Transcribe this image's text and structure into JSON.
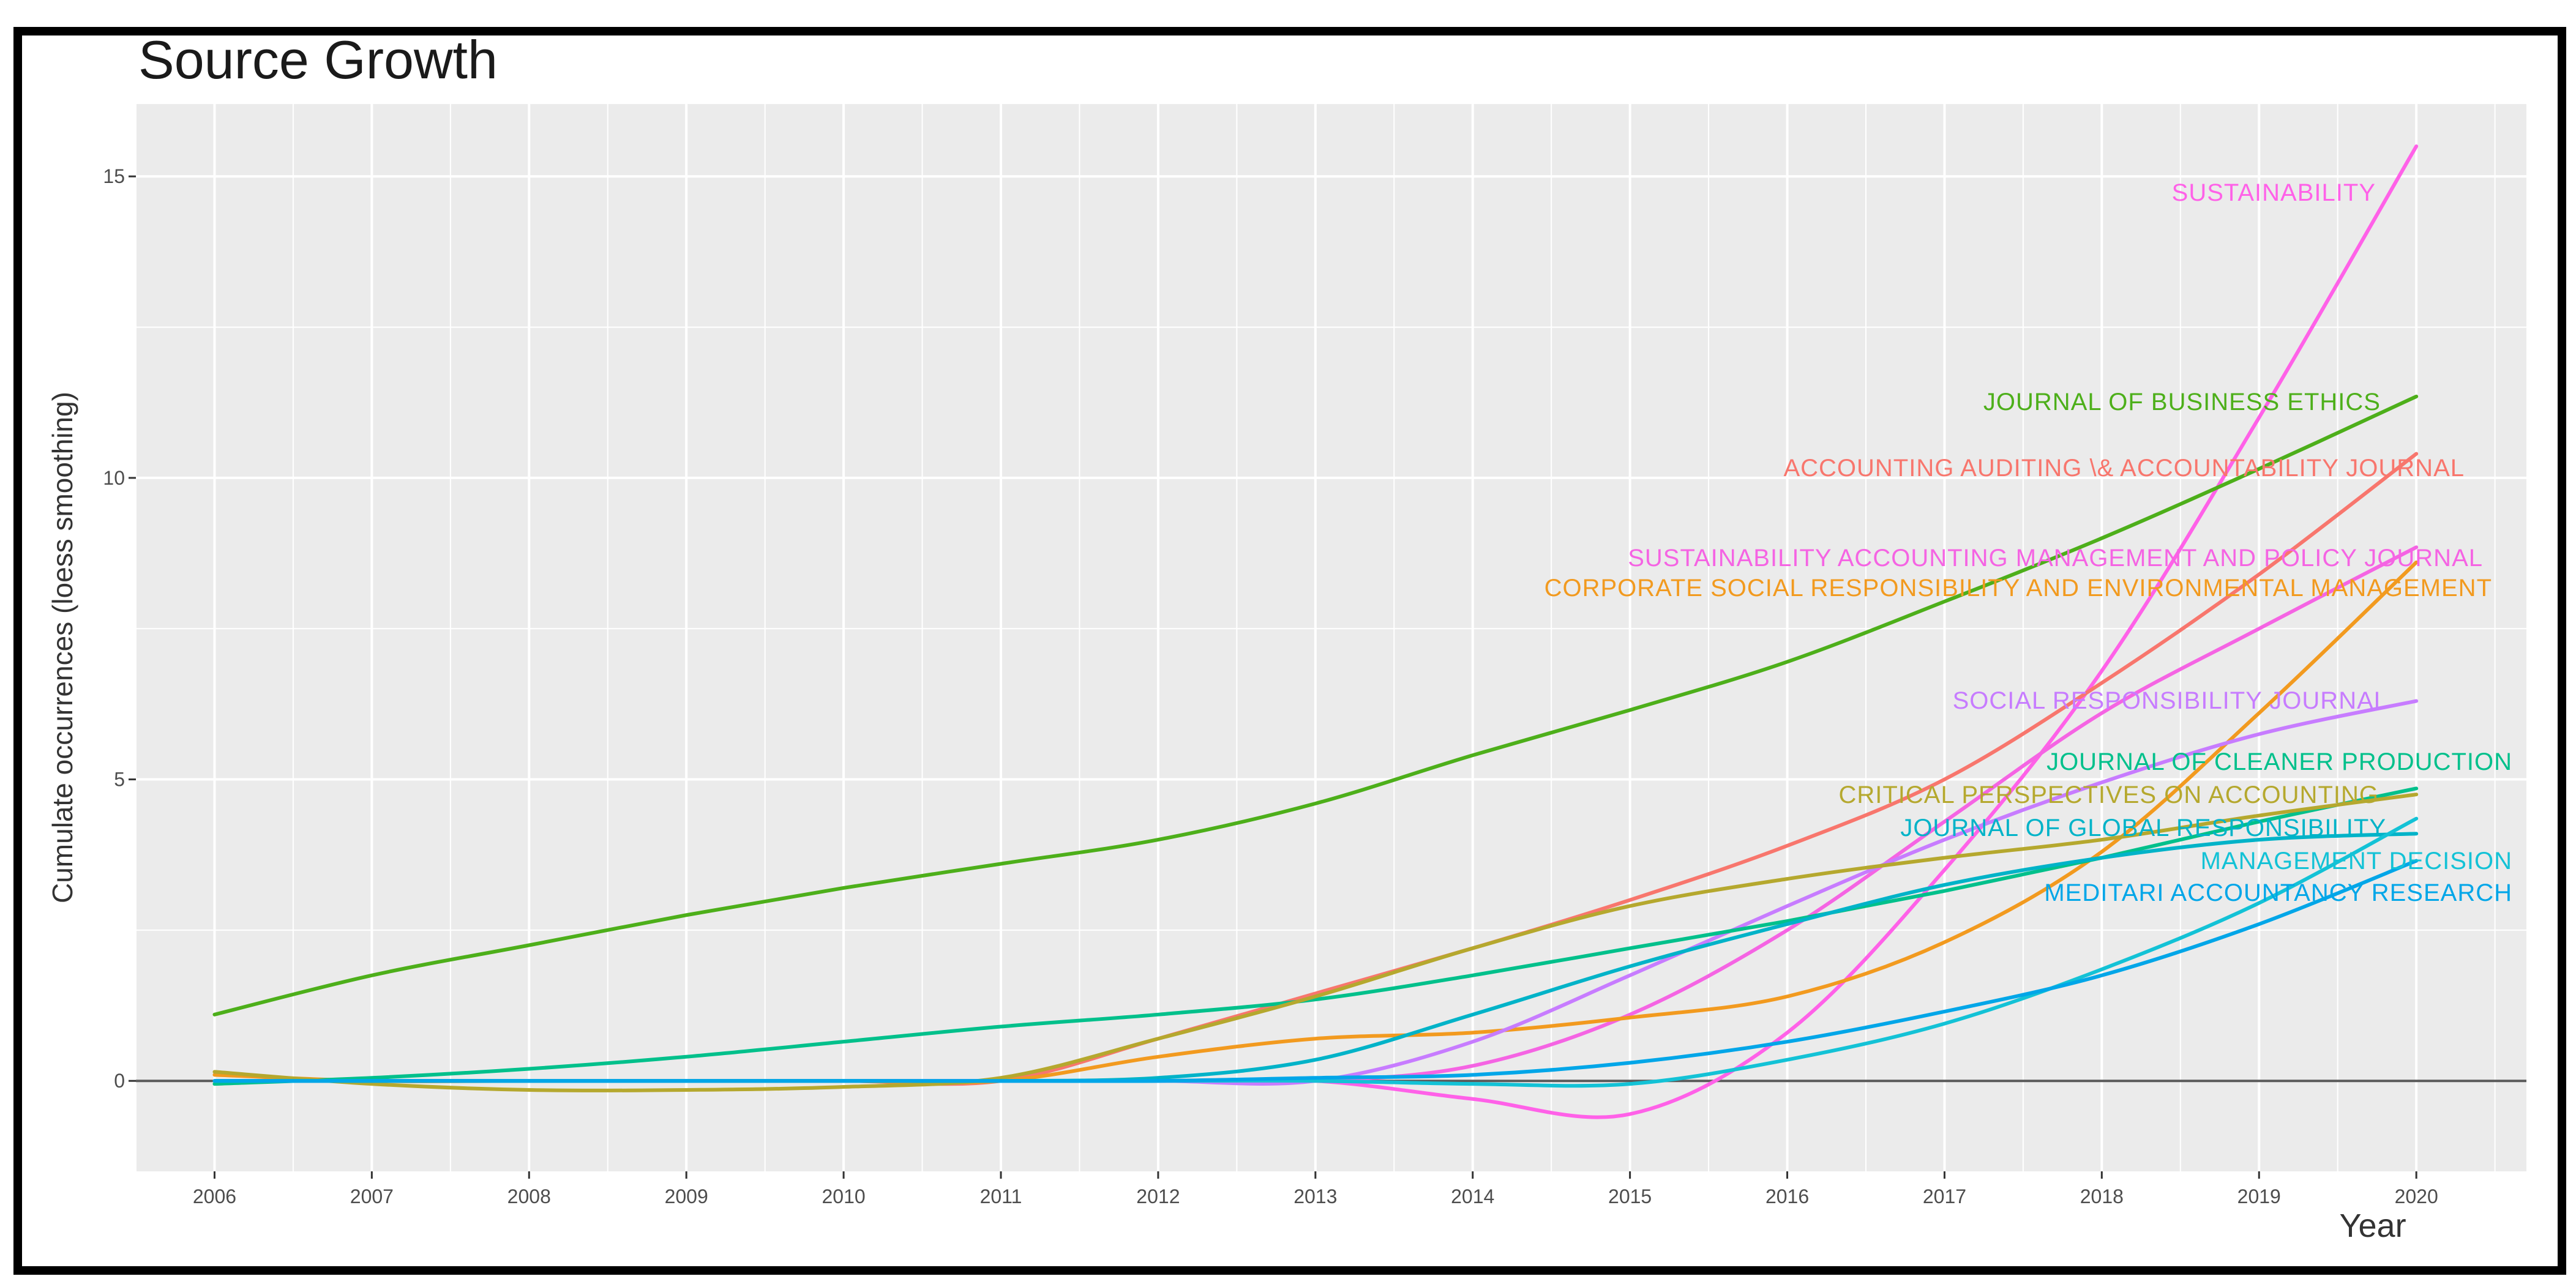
{
  "chart_data": {
    "type": "line",
    "title": "Source Growth",
    "xlabel": "Year",
    "ylabel": "Cumulate occurrences (loess smoothing)",
    "x": [
      2006,
      2007,
      2008,
      2009,
      2010,
      2011,
      2012,
      2013,
      2014,
      2015,
      2016,
      2017,
      2018,
      2019,
      2020
    ],
    "xlim": [
      2005.5,
      2020.7
    ],
    "ylim": [
      -1.5,
      16.2
    ],
    "yticks": [
      0,
      5,
      10,
      15
    ],
    "grid": true,
    "series": [
      {
        "name": "SUSTAINABILITY",
        "color": "#ff61e8",
        "values": [
          0,
          0,
          0,
          0,
          0,
          0,
          0,
          0,
          -0.3,
          -0.55,
          0.8,
          3.5,
          6.8,
          11.0,
          15.5
        ]
      },
      {
        "name": "JOURNAL OF BUSINESS ETHICS",
        "color": "#4daf1a",
        "values": [
          1.1,
          1.75,
          2.25,
          2.75,
          3.2,
          3.6,
          4.0,
          4.6,
          5.4,
          6.15,
          6.95,
          7.95,
          9.0,
          10.15,
          11.35
        ]
      },
      {
        "name": "ACCOUNTING AUDITING \\& ACCOUNTABILITY JOURNAL",
        "color": "#f8766d",
        "values": [
          0,
          0,
          0,
          0,
          0,
          0,
          0.7,
          1.45,
          2.2,
          3.0,
          3.9,
          5.0,
          6.6,
          8.4,
          10.4
        ]
      },
      {
        "name": "SUSTAINABILITY ACCOUNTING MANAGEMENT AND POLICY JOURNAL",
        "color": "#f564e3",
        "values": [
          0,
          0,
          0,
          0,
          0,
          0,
          0,
          0,
          0.25,
          1.1,
          2.5,
          4.3,
          6.1,
          7.5,
          8.85
        ]
      },
      {
        "name": "CORPORATE SOCIAL RESPONSIBILITY AND ENVIRONMENTAL MANAGEMENT",
        "color": "#f29a1f",
        "values": [
          0.1,
          0,
          0,
          0,
          0,
          0,
          0.4,
          0.7,
          0.8,
          1.05,
          1.4,
          2.3,
          3.8,
          6.1,
          8.6
        ]
      },
      {
        "name": "SOCIAL RESPONSIBILITY JOURNAL",
        "color": "#c77cff",
        "values": [
          0,
          0,
          0,
          0,
          0,
          0,
          0,
          0,
          0.65,
          1.75,
          2.9,
          4.0,
          4.95,
          5.75,
          6.3
        ]
      },
      {
        "name": "JOURNAL OF CLEANER PRODUCTION",
        "color": "#00c08b",
        "values": [
          -0.05,
          0.05,
          0.2,
          0.4,
          0.65,
          0.9,
          1.1,
          1.35,
          1.75,
          2.2,
          2.65,
          3.15,
          3.7,
          4.3,
          4.85
        ]
      },
      {
        "name": "CRITICAL PERSPECTIVES ON ACCOUNTING",
        "color": "#b5a82e",
        "values": [
          0.15,
          -0.05,
          -0.15,
          -0.15,
          -0.1,
          0.05,
          0.7,
          1.4,
          2.2,
          2.9,
          3.35,
          3.7,
          4.0,
          4.4,
          4.75
        ]
      },
      {
        "name": "JOURNAL OF GLOBAL RESPONSIBILITY",
        "color": "#00b3c8",
        "values": [
          0,
          0,
          0,
          0,
          0,
          0,
          0.05,
          0.35,
          1.1,
          1.9,
          2.6,
          3.25,
          3.7,
          4.0,
          4.1
        ]
      },
      {
        "name": "MANAGEMENT DECISION",
        "color": "#13c2d6",
        "values": [
          0,
          0,
          0,
          0,
          0,
          0,
          0,
          0,
          -0.05,
          -0.05,
          0.35,
          0.95,
          1.85,
          2.95,
          4.35
        ]
      },
      {
        "name": "MEDITARI ACCOUNTANCY RESEARCH",
        "color": "#00a6e8",
        "values": [
          0,
          0,
          0,
          0,
          0,
          0,
          0,
          0.05,
          0.1,
          0.3,
          0.65,
          1.15,
          1.75,
          2.6,
          3.65
        ]
      }
    ]
  }
}
